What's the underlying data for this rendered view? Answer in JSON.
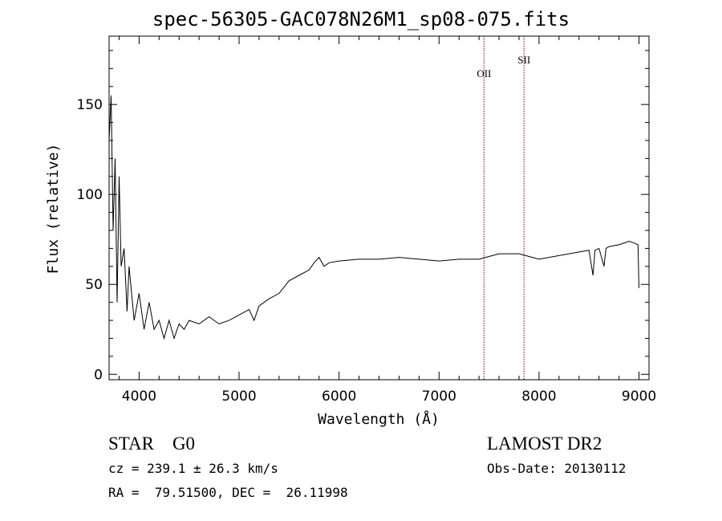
{
  "chart_data": {
    "type": "line",
    "title": "spec-56305-GAC078N26M1_sp08-075.fits",
    "xlabel": "Wavelength (Å)",
    "ylabel": "Flux (relative)",
    "xlim": [
      3700,
      9100
    ],
    "ylim": [
      -3,
      188
    ],
    "xticks": [
      4000,
      5000,
      6000,
      7000,
      8000,
      9000
    ],
    "xtick_labels": [
      "4000",
      "5000",
      "6000",
      "7000",
      "8000",
      "9000"
    ],
    "yticks": [
      0,
      50,
      100,
      150
    ],
    "ytick_labels": [
      "0",
      "50",
      "100",
      "150"
    ],
    "grid": false,
    "series": [
      {
        "x": [
          3700,
          3720,
          3740,
          3760,
          3780,
          3800,
          3820,
          3850,
          3880,
          3900,
          3950,
          4000,
          4050,
          4100,
          4150,
          4200,
          4250,
          4300,
          4350,
          4400,
          4450,
          4500,
          4600,
          4700,
          4800,
          4900,
          5000,
          5100,
          5150,
          5200,
          5300,
          5400,
          5500,
          5600,
          5700,
          5750,
          5800,
          5850,
          5900,
          6000,
          6200,
          6400,
          6600,
          6800,
          7000,
          7200,
          7400,
          7600,
          7800,
          8000,
          8200,
          8400,
          8500,
          8540,
          8560,
          8600,
          8650,
          8670,
          8700,
          8800,
          8900,
          8950,
          8990,
          9000
        ],
        "y": [
          130,
          155,
          80,
          120,
          40,
          110,
          60,
          70,
          35,
          60,
          30,
          45,
          25,
          40,
          25,
          30,
          20,
          30,
          20,
          28,
          25,
          30,
          28,
          32,
          28,
          30,
          33,
          36,
          30,
          38,
          42,
          45,
          52,
          55,
          58,
          62,
          65,
          60,
          62,
          63,
          64,
          64,
          65,
          64,
          63,
          64,
          64,
          67,
          67,
          64,
          66,
          68,
          69,
          55,
          69,
          70,
          60,
          70,
          71,
          72,
          74,
          73,
          72,
          48
        ],
        "color": "#000000"
      }
    ],
    "lines": [
      {
        "label": "OII",
        "x": 7450,
        "color": "#8b0000"
      },
      {
        "label": "SII",
        "x": 7850,
        "color": "#8b0000"
      }
    ]
  },
  "footer": {
    "classification": "STAR    G0",
    "survey": "LAMOST DR2",
    "redshift": "cz = 239.1 ± 26.3 km/s",
    "obs_date": "Obs-Date: 20130112",
    "coords": "RA =  79.51500, DEC =  26.11998"
  }
}
